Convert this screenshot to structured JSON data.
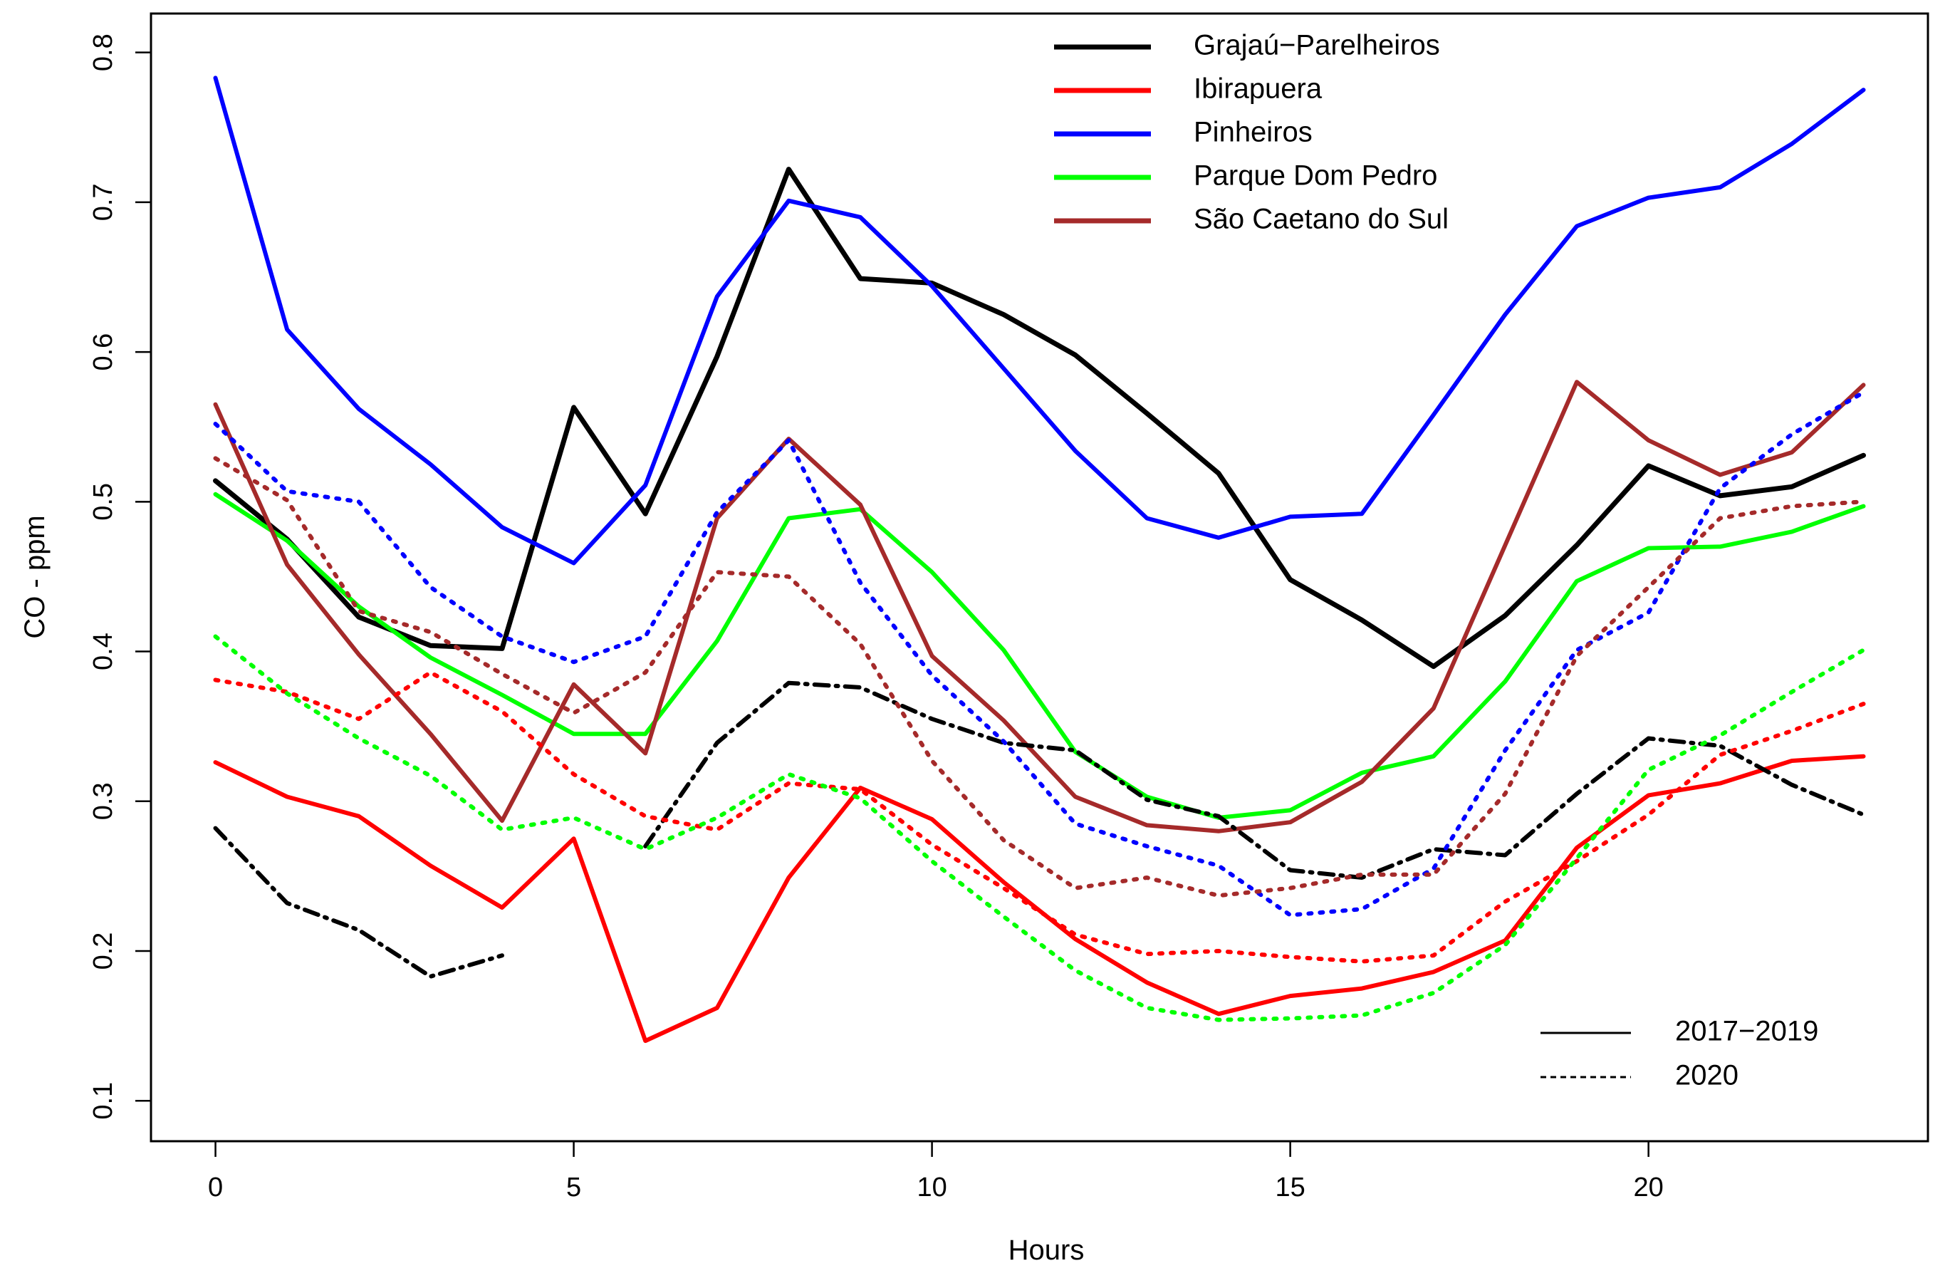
{
  "chart_data": {
    "type": "line",
    "title": "",
    "xlabel": "Hours",
    "ylabel": "CO - ppm",
    "xlim": [
      -0.9,
      23.9
    ],
    "ylim": [
      0.073,
      0.826
    ],
    "x_ticks": [
      0,
      5,
      10,
      15,
      20
    ],
    "y_ticks": [
      0.1,
      0.2,
      0.3,
      0.4,
      0.5,
      0.6,
      0.7,
      0.8
    ],
    "x_tick_labels": [
      "0",
      "5",
      "10",
      "15",
      "20"
    ],
    "y_tick_labels": [
      "0.1",
      "0.2",
      "0.3",
      "0.4",
      "0.5",
      "0.6",
      "0.7",
      "0.8"
    ],
    "grid": false,
    "legend_position": "top-center",
    "x": [
      0,
      1,
      2,
      3,
      4,
      5,
      6,
      7,
      8,
      9,
      10,
      11,
      12,
      13,
      14,
      15,
      16,
      17,
      18,
      19,
      20,
      21,
      22,
      23
    ],
    "series": [
      {
        "name": "Grajaú−Parelheiros",
        "period": "2017−2019",
        "color": "#000000",
        "values": [
          0.514,
          0.475,
          0.423,
          0.404,
          0.402,
          0.563,
          0.492,
          0.597,
          0.722,
          0.649,
          0.646,
          0.625,
          0.598,
          0.559,
          0.519,
          0.448,
          0.421,
          0.39,
          0.424,
          0.471,
          0.524,
          0.504,
          0.51,
          0.531
        ]
      },
      {
        "name": "Ibirapuera",
        "period": "2017−2019",
        "color": "#ff0000",
        "values": [
          0.326,
          0.303,
          0.29,
          0.257,
          0.229,
          0.275,
          0.14,
          0.162,
          0.249,
          0.309,
          0.288,
          0.246,
          0.208,
          0.179,
          0.158,
          0.17,
          0.175,
          0.186,
          0.207,
          0.269,
          0.304,
          0.312,
          0.327,
          0.33
        ]
      },
      {
        "name": "Pinheiros",
        "period": "2017−2019",
        "color": "#0000ff",
        "values": [
          0.783,
          0.615,
          0.562,
          0.525,
          0.483,
          0.459,
          0.511,
          0.637,
          0.701,
          0.69,
          0.644,
          0.589,
          0.534,
          0.489,
          0.476,
          0.49,
          0.492,
          0.558,
          0.625,
          0.684,
          0.703,
          0.71,
          0.739,
          0.775
        ]
      },
      {
        "name": "Parque Dom Pedro",
        "period": "2017−2019",
        "color": "#00ff00",
        "values": [
          0.505,
          0.474,
          0.43,
          0.396,
          0.371,
          0.345,
          0.345,
          0.407,
          0.489,
          0.495,
          0.453,
          0.401,
          0.333,
          0.303,
          0.289,
          0.294,
          0.319,
          0.33,
          0.38,
          0.447,
          0.469,
          0.47,
          0.48,
          0.497
        ]
      },
      {
        "name": "São Caetano do Sul",
        "period": "2017−2019",
        "color": "#a52a2a",
        "values": [
          0.565,
          0.458,
          0.398,
          0.345,
          0.287,
          0.378,
          0.332,
          0.489,
          0.542,
          0.498,
          0.397,
          0.354,
          0.303,
          0.284,
          0.28,
          0.286,
          0.313,
          0.362,
          0.471,
          0.58,
          0.541,
          0.518,
          0.533,
          0.578
        ]
      },
      {
        "name": "Grajaú−Parelheiros",
        "period": "2020",
        "color": "#000000",
        "segments": [
          {
            "x": [
              0,
              1,
              2,
              3,
              4
            ],
            "values": [
              0.282,
              0.232,
              0.214,
              0.183,
              0.197
            ]
          },
          {
            "x": [
              6,
              7,
              8,
              9,
              10,
              11,
              12,
              13,
              14,
              15,
              16,
              17,
              18,
              19,
              20,
              21,
              22,
              23
            ],
            "values": [
              0.27,
              0.339,
              0.379,
              0.376,
              0.355,
              0.339,
              0.334,
              0.301,
              0.29,
              0.254,
              0.249,
              0.268,
              0.264,
              0.305,
              0.342,
              0.337,
              0.311,
              0.291
            ]
          }
        ]
      },
      {
        "name": "Ibirapuera",
        "period": "2020",
        "color": "#ff0000",
        "values": [
          0.381,
          0.373,
          0.355,
          0.386,
          0.36,
          0.318,
          0.29,
          0.281,
          0.312,
          0.308,
          0.271,
          0.242,
          0.211,
          0.198,
          0.2,
          0.196,
          0.193,
          0.197,
          0.233,
          0.26,
          0.291,
          0.331,
          0.347,
          0.365
        ]
      },
      {
        "name": "Pinheiros",
        "period": "2020",
        "color": "#0000ff",
        "values": [
          0.552,
          0.507,
          0.5,
          0.443,
          0.41,
          0.393,
          0.41,
          0.493,
          0.541,
          0.446,
          0.384,
          0.34,
          0.285,
          0.27,
          0.257,
          0.224,
          0.228,
          0.255,
          0.334,
          0.401,
          0.426,
          0.509,
          0.545,
          0.573
        ]
      },
      {
        "name": "Parque Dom Pedro",
        "period": "2020",
        "color": "#00ff00",
        "values": [
          0.41,
          0.372,
          0.342,
          0.317,
          0.281,
          0.289,
          0.268,
          0.289,
          0.318,
          0.302,
          0.26,
          0.223,
          0.187,
          0.162,
          0.154,
          0.155,
          0.157,
          0.172,
          0.204,
          0.262,
          0.321,
          0.344,
          0.373,
          0.401
        ]
      },
      {
        "name": "São Caetano do Sul",
        "period": "2020",
        "color": "#a52a2a",
        "values": [
          0.529,
          0.501,
          0.427,
          0.413,
          0.385,
          0.359,
          0.386,
          0.453,
          0.45,
          0.405,
          0.327,
          0.274,
          0.242,
          0.249,
          0.237,
          0.242,
          0.251,
          0.251,
          0.305,
          0.397,
          0.443,
          0.489,
          0.497,
          0.5
        ]
      }
    ],
    "legend": {
      "stations": [
        {
          "label": "Grajaú−Parelheiros",
          "color": "#000000"
        },
        {
          "label": "Ibirapuera",
          "color": "#ff0000"
        },
        {
          "label": "Pinheiros",
          "color": "#0000ff"
        },
        {
          "label": "Parque Dom Pedro",
          "color": "#00ff00"
        },
        {
          "label": "São Caetano do Sul",
          "color": "#a52a2a"
        }
      ],
      "periods": [
        {
          "label": "2017−2019",
          "style": "solid"
        },
        {
          "label": "2020",
          "style": "dotted"
        }
      ]
    }
  }
}
